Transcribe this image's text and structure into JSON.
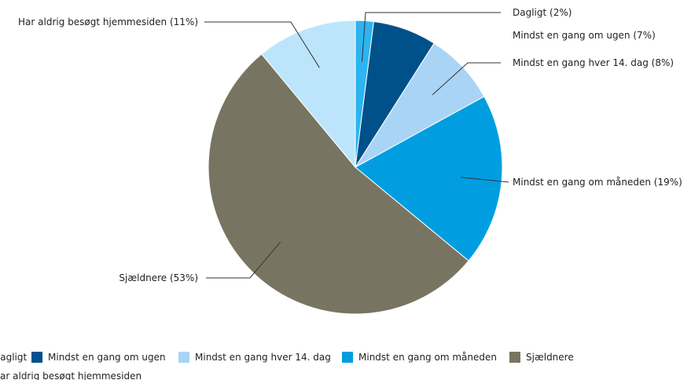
{
  "chart_data": {
    "type": "pie",
    "categories": [
      "Dagligt",
      "Mindst en gang om ugen",
      "Mindst en gang hver 14. dag",
      "Mindst en gang om måneden",
      "Sjældnere",
      "Har aldrig besøgt hjemmesiden"
    ],
    "values": [
      2,
      7,
      8,
      19,
      53,
      11
    ],
    "data_labels": [
      "Dagligt (2%)",
      "Mindst en gang om ugen (7%)",
      "Mindst en gang hver 14. dag (8%)",
      "Mindst en gang om måneden (19%)",
      "Sjældnere (53%)",
      "Har aldrig besøgt hjemmesiden (11%)"
    ],
    "colors": [
      "#2cb5f0",
      "#00508a",
      "#a9d4f5",
      "#009ee0",
      "#777561",
      "#bce5fb"
    ],
    "legend": {
      "position": "bottom",
      "items": [
        "Dagligt",
        "Mindst en gang om ugen",
        "Mindst en gang hver 14. dag",
        "Mindst en gang om måneden",
        "Sjældnere",
        "Har aldrig besøgt hjemmesiden"
      ]
    }
  }
}
